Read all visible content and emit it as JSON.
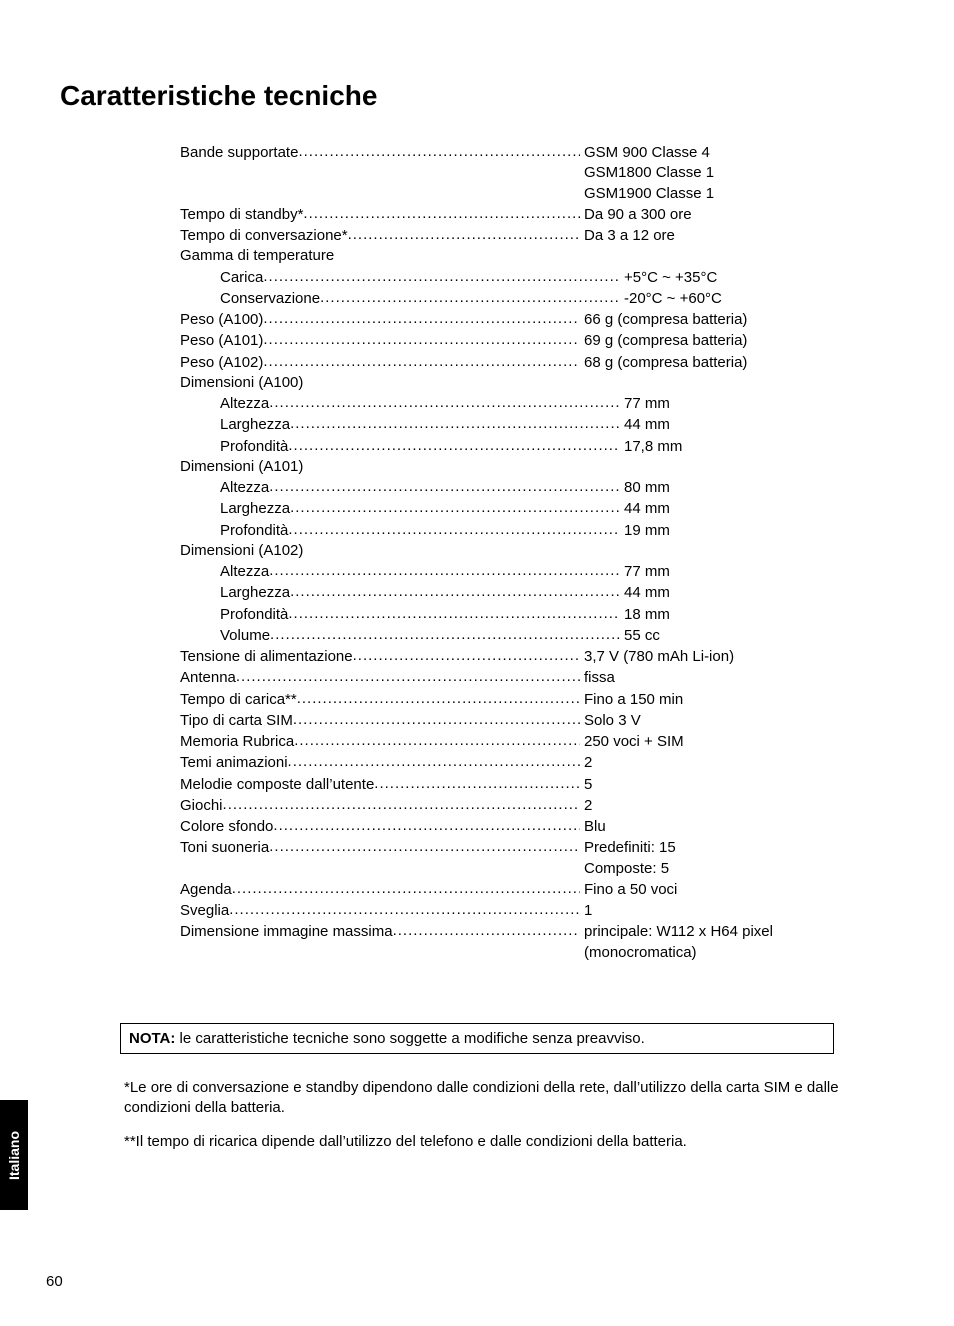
{
  "title": "Caratteristiche tecniche",
  "specs": [
    {
      "type": "dotted",
      "indent": 0,
      "label": "Bande supportate",
      "value": "GSM 900 Classe 4"
    },
    {
      "type": "cont",
      "value": "GSM1800 Classe 1"
    },
    {
      "type": "cont",
      "value": "GSM1900 Classe 1"
    },
    {
      "type": "dotted",
      "indent": 0,
      "label": "Tempo di standby*",
      "value": "Da 90 a 300 ore"
    },
    {
      "type": "dotted",
      "indent": 0,
      "label": "Tempo di conversazione*",
      "value": "Da 3 a 12 ore"
    },
    {
      "type": "header",
      "indent": 0,
      "label": "Gamma di temperature"
    },
    {
      "type": "dotted",
      "indent": 1,
      "label": "Carica",
      "value": "+5°C ~ +35°C"
    },
    {
      "type": "dotted",
      "indent": 1,
      "label": "Conservazione",
      "value": "-20°C ~ +60°C"
    },
    {
      "type": "dotted",
      "indent": 0,
      "label": "Peso (A100)",
      "value": "66 g (compresa batteria)"
    },
    {
      "type": "dotted",
      "indent": 0,
      "label": "Peso (A101)",
      "value": "69 g (compresa batteria)"
    },
    {
      "type": "dotted",
      "indent": 0,
      "label": "Peso (A102)",
      "value": "68 g (compresa batteria)"
    },
    {
      "type": "header",
      "indent": 0,
      "label": "Dimensioni (A100)"
    },
    {
      "type": "dotted",
      "indent": 1,
      "label": "Altezza",
      "value": "77 mm"
    },
    {
      "type": "dotted",
      "indent": 1,
      "label": "Larghezza",
      "value": "44 mm"
    },
    {
      "type": "dotted",
      "indent": 1,
      "label": "Profondità",
      "value": "17,8 mm"
    },
    {
      "type": "header",
      "indent": 0,
      "label": "Dimensioni (A101)"
    },
    {
      "type": "dotted",
      "indent": 1,
      "label": "Altezza",
      "value": "80 mm"
    },
    {
      "type": "dotted",
      "indent": 1,
      "label": "Larghezza",
      "value": "44 mm"
    },
    {
      "type": "dotted",
      "indent": 1,
      "label": "Profondità",
      "value": "19 mm"
    },
    {
      "type": "header",
      "indent": 0,
      "label": "Dimensioni (A102)"
    },
    {
      "type": "dotted",
      "indent": 1,
      "label": "Altezza",
      "value": "77 mm"
    },
    {
      "type": "dotted",
      "indent": 1,
      "label": "Larghezza",
      "value": "44 mm"
    },
    {
      "type": "dotted",
      "indent": 1,
      "label": "Profondità",
      "value": "18 mm"
    },
    {
      "type": "dotted",
      "indent": 1,
      "label": "Volume",
      "value": "55 cc"
    },
    {
      "type": "dotted",
      "indent": 0,
      "label": "Tensione di alimentazione",
      "value": "3,7 V (780 mAh Li-ion)"
    },
    {
      "type": "dotted",
      "indent": 0,
      "label": "Antenna",
      "value": "fissa"
    },
    {
      "type": "dotted",
      "indent": 0,
      "label": "Tempo di carica**",
      "value": "Fino a 150 min"
    },
    {
      "type": "dotted",
      "indent": 0,
      "label": "Tipo di carta SIM",
      "value": "Solo 3 V"
    },
    {
      "type": "dotted",
      "indent": 0,
      "label": "Memoria Rubrica",
      "value": "250 voci + SIM"
    },
    {
      "type": "dotted",
      "indent": 0,
      "label": "Temi animazioni",
      "value": "2"
    },
    {
      "type": "dotted",
      "indent": 0,
      "label": "Melodie composte dall’utente",
      "value": "5"
    },
    {
      "type": "dotted",
      "indent": 0,
      "label": "Giochi",
      "value": "2"
    },
    {
      "type": "dotted",
      "indent": 0,
      "label": "Colore sfondo",
      "value": "Blu"
    },
    {
      "type": "dotted",
      "indent": 0,
      "label": "Toni suoneria",
      "value": "Predefiniti: 15"
    },
    {
      "type": "cont",
      "value": "Composte: 5"
    },
    {
      "type": "dotted",
      "indent": 0,
      "label": "Agenda",
      "value": "Fino a 50 voci"
    },
    {
      "type": "dotted",
      "indent": 0,
      "label": "Sveglia",
      "value": "1"
    },
    {
      "type": "dotted",
      "indent": 0,
      "label": "Dimensione immagine massima",
      "value": "principale: W112 x H64 pixel"
    },
    {
      "type": "cont",
      "value": "(monocromatica)"
    }
  ],
  "note": {
    "label": "NOTA:",
    "text": " le caratteristiche tecniche sono soggette a modifiche senza preavviso."
  },
  "footnotes": [
    "*Le ore di conversazione e standby dipendono dalle condizioni della rete, dall’utilizzo della carta SIM e dalle condizioni della batteria.",
    "**Il tempo di ricarica dipende dall’utilizzo del telefono e dalle condizioni della batteria."
  ],
  "sideTab": "Italiano",
  "pageNumber": "60"
}
